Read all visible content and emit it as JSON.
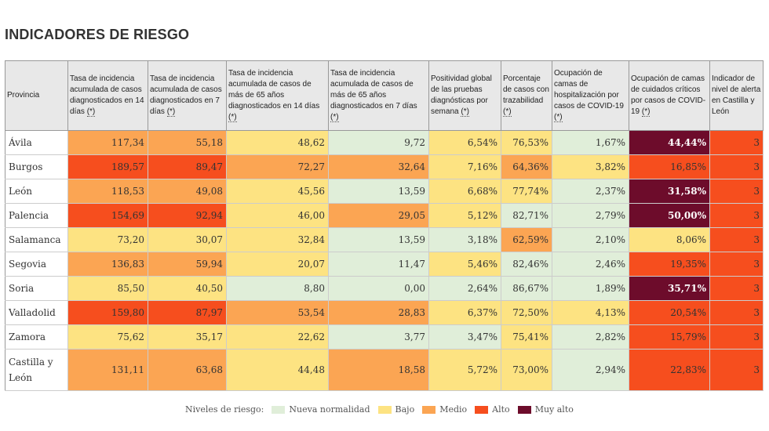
{
  "title": "INDICADORES DE RIESGO",
  "columns": [
    {
      "label": "Provincia",
      "note": ""
    },
    {
      "label": "Tasa de incidencia acumulada de casos diagnosticados en 14 días",
      "note": "(*)"
    },
    {
      "label": "Tasa de incidencia acumulada de casos diagnosticados en 7 días",
      "note": "(*)"
    },
    {
      "label": "Tasa de incidencia acumulada de casos de más de 65 años diagnosticados en 14 días",
      "note": "(*)"
    },
    {
      "label": "Tasa de incidencia acumulada de casos de más de 65 años diagnosticados en 7 días",
      "note": "(*)"
    },
    {
      "label": "Positividad global de las pruebas diagnósticas por semana",
      "note": "(*)"
    },
    {
      "label": "Porcentaje de casos con trazabilidad",
      "note": "(*)"
    },
    {
      "label": "Ocupación de camas de hospitalización por casos de COVID-19",
      "note": "(*)"
    },
    {
      "label": "Ocupación de camas de cuidados críticos por casos de COVID-19",
      "note": "(*)"
    },
    {
      "label": "Indicador de nivel de alerta en Castilla y León",
      "note": ""
    }
  ],
  "rows": [
    {
      "provincia": "Ávila",
      "cells": [
        {
          "v": "117,34",
          "level": "medio"
        },
        {
          "v": "55,18",
          "level": "medio"
        },
        {
          "v": "48,62",
          "level": "bajo"
        },
        {
          "v": "9,72",
          "level": "nn"
        },
        {
          "v": "6,54%",
          "level": "bajo"
        },
        {
          "v": "76,53%",
          "level": "bajo"
        },
        {
          "v": "1,67%",
          "level": "nn"
        },
        {
          "v": "44,44%",
          "level": "muyalto"
        },
        {
          "v": "3",
          "level": "alto"
        }
      ]
    },
    {
      "provincia": "Burgos",
      "cells": [
        {
          "v": "189,57",
          "level": "alto"
        },
        {
          "v": "89,47",
          "level": "alto"
        },
        {
          "v": "72,27",
          "level": "medio"
        },
        {
          "v": "32,64",
          "level": "medio"
        },
        {
          "v": "7,16%",
          "level": "bajo"
        },
        {
          "v": "64,36%",
          "level": "medio"
        },
        {
          "v": "3,82%",
          "level": "bajo"
        },
        {
          "v": "16,85%",
          "level": "alto"
        },
        {
          "v": "3",
          "level": "alto"
        }
      ]
    },
    {
      "provincia": "León",
      "cells": [
        {
          "v": "118,53",
          "level": "medio"
        },
        {
          "v": "49,08",
          "level": "medio"
        },
        {
          "v": "45,56",
          "level": "bajo"
        },
        {
          "v": "13,59",
          "level": "nn"
        },
        {
          "v": "6,68%",
          "level": "bajo"
        },
        {
          "v": "77,74%",
          "level": "bajo"
        },
        {
          "v": "2,37%",
          "level": "nn"
        },
        {
          "v": "31,58%",
          "level": "muyalto"
        },
        {
          "v": "3",
          "level": "alto"
        }
      ]
    },
    {
      "provincia": "Palencia",
      "cells": [
        {
          "v": "154,69",
          "level": "alto"
        },
        {
          "v": "92,94",
          "level": "alto"
        },
        {
          "v": "46,00",
          "level": "bajo"
        },
        {
          "v": "29,05",
          "level": "medio"
        },
        {
          "v": "5,12%",
          "level": "bajo"
        },
        {
          "v": "82,71%",
          "level": "nn"
        },
        {
          "v": "2,79%",
          "level": "nn"
        },
        {
          "v": "50,00%",
          "level": "muyalto"
        },
        {
          "v": "3",
          "level": "alto"
        }
      ]
    },
    {
      "provincia": "Salamanca",
      "cells": [
        {
          "v": "73,20",
          "level": "bajo"
        },
        {
          "v": "30,07",
          "level": "bajo"
        },
        {
          "v": "32,84",
          "level": "bajo"
        },
        {
          "v": "13,59",
          "level": "nn"
        },
        {
          "v": "3,18%",
          "level": "nn"
        },
        {
          "v": "62,59%",
          "level": "medio"
        },
        {
          "v": "2,10%",
          "level": "nn"
        },
        {
          "v": "8,06%",
          "level": "bajo"
        },
        {
          "v": "3",
          "level": "alto"
        }
      ]
    },
    {
      "provincia": "Segovia",
      "cells": [
        {
          "v": "136,83",
          "level": "medio"
        },
        {
          "v": "59,94",
          "level": "medio"
        },
        {
          "v": "20,07",
          "level": "bajo"
        },
        {
          "v": "11,47",
          "level": "nn"
        },
        {
          "v": "5,46%",
          "level": "bajo"
        },
        {
          "v": "82,46%",
          "level": "nn"
        },
        {
          "v": "2,46%",
          "level": "nn"
        },
        {
          "v": "19,35%",
          "level": "alto"
        },
        {
          "v": "3",
          "level": "alto"
        }
      ]
    },
    {
      "provincia": "Soria",
      "cells": [
        {
          "v": "85,50",
          "level": "bajo"
        },
        {
          "v": "40,50",
          "level": "bajo"
        },
        {
          "v": "8,80",
          "level": "nn"
        },
        {
          "v": "0,00",
          "level": "nn"
        },
        {
          "v": "2,64%",
          "level": "nn"
        },
        {
          "v": "86,67%",
          "level": "nn"
        },
        {
          "v": "1,89%",
          "level": "nn"
        },
        {
          "v": "35,71%",
          "level": "muyalto"
        },
        {
          "v": "3",
          "level": "alto"
        }
      ]
    },
    {
      "provincia": "Valladolid",
      "cells": [
        {
          "v": "159,80",
          "level": "alto"
        },
        {
          "v": "87,97",
          "level": "alto"
        },
        {
          "v": "53,54",
          "level": "medio"
        },
        {
          "v": "28,83",
          "level": "medio"
        },
        {
          "v": "6,37%",
          "level": "bajo"
        },
        {
          "v": "72,50%",
          "level": "bajo"
        },
        {
          "v": "4,13%",
          "level": "bajo"
        },
        {
          "v": "20,54%",
          "level": "alto"
        },
        {
          "v": "3",
          "level": "alto"
        }
      ]
    },
    {
      "provincia": "Zamora",
      "cells": [
        {
          "v": "75,62",
          "level": "bajo"
        },
        {
          "v": "35,17",
          "level": "bajo"
        },
        {
          "v": "22,62",
          "level": "bajo"
        },
        {
          "v": "3,77",
          "level": "nn"
        },
        {
          "v": "3,47%",
          "level": "nn"
        },
        {
          "v": "75,41%",
          "level": "bajo"
        },
        {
          "v": "2,82%",
          "level": "nn"
        },
        {
          "v": "15,79%",
          "level": "alto"
        },
        {
          "v": "3",
          "level": "alto"
        }
      ]
    },
    {
      "provincia": "Castilla y León",
      "cells": [
        {
          "v": "131,11",
          "level": "medio"
        },
        {
          "v": "63,68",
          "level": "medio"
        },
        {
          "v": "44,48",
          "level": "bajo"
        },
        {
          "v": "18,58",
          "level": "medio"
        },
        {
          "v": "5,72%",
          "level": "bajo"
        },
        {
          "v": "73,00%",
          "level": "bajo"
        },
        {
          "v": "2,94%",
          "level": "nn"
        },
        {
          "v": "22,83%",
          "level": "alto"
        },
        {
          "v": "3",
          "level": "alto"
        }
      ]
    }
  ],
  "legend": {
    "label": "Niveles de riesgo:",
    "items": [
      {
        "key": "nn",
        "label": "Nueva normalidad",
        "color": "#e0eed9"
      },
      {
        "key": "bajo",
        "label": "Bajo",
        "color": "#fde382"
      },
      {
        "key": "medio",
        "label": "Medio",
        "color": "#fba553"
      },
      {
        "key": "alto",
        "label": "Alto",
        "color": "#f64e1e"
      },
      {
        "key": "muyalto",
        "label": "Muy alto",
        "color": "#6d0c2b"
      }
    ]
  }
}
